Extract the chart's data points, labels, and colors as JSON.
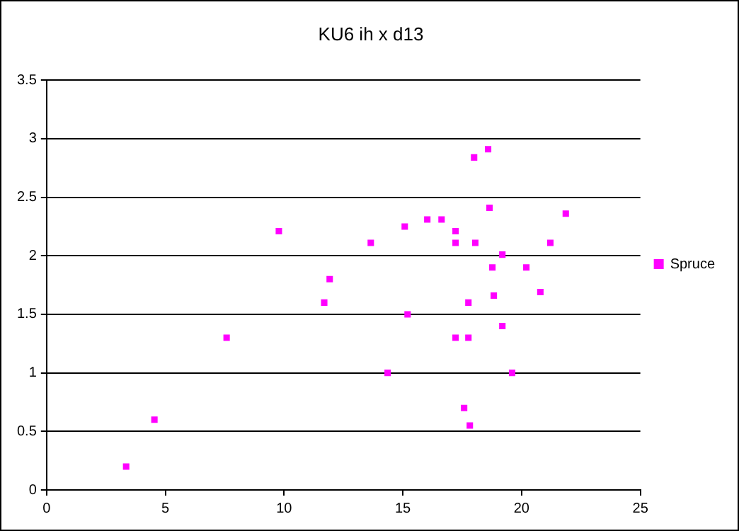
{
  "chart_data": {
    "type": "scatter",
    "title": "KU6 ih x d13",
    "series": [
      {
        "name": "Spruce",
        "color": "#ff00ff",
        "x": [
          3.35,
          4.54,
          7.58,
          9.78,
          11.69,
          11.92,
          13.65,
          14.36,
          18.59,
          18.0,
          18.65,
          21.86,
          16.03,
          16.63,
          15.08,
          17.22,
          17.22,
          18.05,
          21.21,
          19.19,
          18.77,
          20.2,
          20.79,
          18.83,
          17.76,
          15.2,
          19.19,
          17.22,
          17.76,
          19.6,
          17.58,
          17.82
        ],
        "values": [
          0.2,
          0.6,
          1.3,
          2.21,
          1.6,
          1.8,
          2.11,
          1.0,
          2.91,
          2.84,
          2.41,
          2.36,
          2.31,
          2.31,
          2.25,
          2.21,
          2.11,
          2.11,
          2.11,
          2.01,
          1.9,
          1.9,
          1.69,
          1.66,
          1.6,
          1.5,
          1.4,
          1.3,
          1.3,
          1.0,
          0.7,
          0.55
        ]
      }
    ],
    "xlim": [
      0,
      25
    ],
    "xticks": [
      0,
      5,
      10,
      15,
      20,
      25
    ],
    "ylim": [
      0,
      3.5
    ],
    "yticks": [
      0,
      0.5,
      1,
      1.5,
      2,
      2.5,
      3,
      3.5
    ],
    "grid": "y",
    "legend": "right",
    "marker": "square"
  }
}
